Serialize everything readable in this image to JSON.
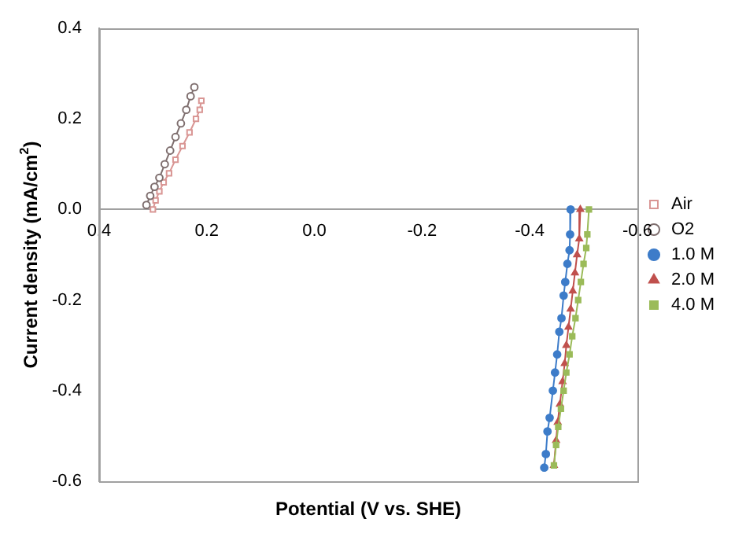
{
  "chart_data": {
    "type": "line",
    "xlabel": "Potential (V vs. SHE)",
    "ylabel": "Current density (mA/cm$^{2}$)",
    "xlim": [
      0.4,
      -0.6
    ],
    "xticks": [
      0.4,
      0.2,
      {
        "value": 0,
        "label": "0.0"
      },
      -0.2,
      -0.4,
      -0.6
    ],
    "ylim": [
      -0.6,
      0.4
    ],
    "yticks": [
      -0.6,
      -0.4,
      -0.2,
      {
        "value": 0,
        "label": "0.0"
      },
      0.2,
      0.4
    ],
    "grid": false,
    "legend": "right",
    "line_style": "solid",
    "series": [
      {
        "name": "Air",
        "color": "#d99694",
        "marker": "square",
        "x": [
          0.3,
          0.295,
          0.288,
          0.28,
          0.27,
          0.258,
          0.245,
          0.232,
          0.22,
          0.213,
          0.21
        ],
        "values": [
          0.0,
          0.02,
          0.04,
          0.06,
          0.08,
          0.11,
          0.14,
          0.17,
          0.2,
          0.22,
          0.24
        ]
      },
      {
        "name": "O2",
        "color": "#7f6f6f",
        "marker": "circle",
        "x": [
          0.312,
          0.305,
          0.297,
          0.288,
          0.278,
          0.268,
          0.258,
          0.248,
          0.238,
          0.23,
          0.223
        ],
        "values": [
          0.01,
          0.03,
          0.05,
          0.07,
          0.1,
          0.13,
          0.16,
          0.19,
          0.22,
          0.25,
          0.27
        ]
      },
      {
        "name": "1.0 M",
        "color": "#3d7cc9",
        "marker": "circle",
        "x": [
          -0.476,
          -0.475,
          -0.474,
          -0.47,
          -0.466,
          -0.463,
          -0.459,
          -0.455,
          -0.451,
          -0.447,
          -0.443,
          -0.437,
          -0.433,
          -0.43,
          -0.427
        ],
        "values": [
          0,
          -0.055,
          -0.09,
          -0.12,
          -0.16,
          -0.19,
          -0.24,
          -0.27,
          -0.32,
          -0.36,
          -0.4,
          -0.46,
          -0.49,
          -0.54,
          -0.57
        ]
      },
      {
        "name": "2.0 M",
        "color": "#c0504d",
        "marker": "triangle",
        "x": [
          -0.494,
          -0.492,
          -0.488,
          -0.484,
          -0.48,
          -0.476,
          -0.472,
          -0.468,
          -0.465,
          -0.461,
          -0.456,
          -0.452,
          -0.449,
          -0.445
        ],
        "values": [
          0,
          -0.065,
          -0.1,
          -0.14,
          -0.18,
          -0.22,
          -0.26,
          -0.3,
          -0.34,
          -0.38,
          -0.43,
          -0.47,
          -0.51,
          -0.565
        ]
      },
      {
        "name": "4.0 M",
        "color": "#9bbb59",
        "marker": "square",
        "x": [
          -0.51,
          -0.507,
          -0.505,
          -0.5,
          -0.495,
          -0.49,
          -0.485,
          -0.479,
          -0.474,
          -0.468,
          -0.463,
          -0.458,
          -0.453,
          -0.449,
          -0.445
        ],
        "values": [
          0,
          -0.055,
          -0.085,
          -0.12,
          -0.16,
          -0.2,
          -0.24,
          -0.28,
          -0.32,
          -0.36,
          -0.4,
          -0.44,
          -0.48,
          -0.52,
          -0.565
        ]
      }
    ]
  }
}
